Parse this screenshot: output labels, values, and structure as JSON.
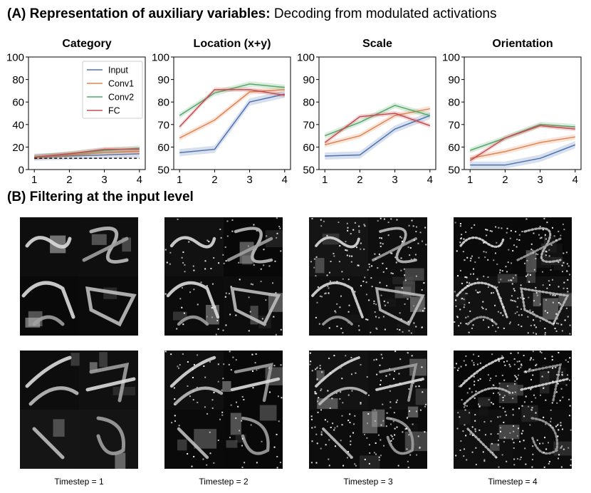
{
  "section_a": {
    "label": "(A)",
    "title_bold": "Representation of auxiliary variables:",
    "title_rest": "Decoding from modulated activations"
  },
  "section_b": {
    "label": "(B)",
    "title_bold": "Filtering at the input level"
  },
  "colors": {
    "Input": "#4c72b0",
    "Conv1": "#dd8452",
    "Conv2": "#55a868",
    "FC": "#c44e52"
  },
  "legend": [
    "Input",
    "Conv1",
    "Conv2",
    "FC"
  ],
  "timestep_labels": [
    "Timestep = 1",
    "Timestep = 2",
    "Timestep = 3",
    "Timestep = 4"
  ],
  "chart_data": [
    {
      "type": "line",
      "title": "Category",
      "x": [
        1,
        2,
        3,
        4
      ],
      "xticks": [
        "1",
        "2",
        "3",
        "4"
      ],
      "ylim": [
        0,
        100
      ],
      "yticks": [
        "0",
        "20",
        "40",
        "60",
        "80",
        "100"
      ],
      "legend_position": "top-right",
      "baseline": 10,
      "series": [
        {
          "name": "Input",
          "values": [
            11,
            12,
            13,
            14
          ]
        },
        {
          "name": "Conv1",
          "values": [
            11,
            13,
            15,
            16
          ]
        },
        {
          "name": "Conv2",
          "values": [
            11,
            14,
            17,
            19
          ]
        },
        {
          "name": "FC",
          "values": [
            11,
            14,
            18,
            18
          ]
        }
      ]
    },
    {
      "type": "line",
      "title": "Location (x+y)",
      "x": [
        1,
        2,
        3,
        4
      ],
      "xticks": [
        "1",
        "2",
        "3",
        "4"
      ],
      "ylim": [
        50,
        100
      ],
      "yticks": [
        "50",
        "60",
        "70",
        "80",
        "90",
        "100"
      ],
      "series": [
        {
          "name": "Input",
          "values": [
            57.5,
            59,
            80,
            83.5
          ]
        },
        {
          "name": "Conv1",
          "values": [
            64,
            72,
            84.5,
            85.5
          ]
        },
        {
          "name": "Conv2",
          "values": [
            74,
            84,
            88,
            86.5
          ]
        },
        {
          "name": "FC",
          "values": [
            69,
            85.5,
            85.5,
            83
          ]
        }
      ]
    },
    {
      "type": "line",
      "title": "Scale",
      "x": [
        1,
        2,
        3,
        4
      ],
      "xticks": [
        "1",
        "2",
        "3",
        "4"
      ],
      "ylim": [
        50,
        100
      ],
      "yticks": [
        "50",
        "60",
        "70",
        "80",
        "90",
        "100"
      ],
      "series": [
        {
          "name": "Input",
          "values": [
            56,
            56.5,
            68,
            74
          ]
        },
        {
          "name": "Conv1",
          "values": [
            61,
            65,
            74,
            77
          ]
        },
        {
          "name": "Conv2",
          "values": [
            65,
            71,
            78.5,
            74
          ]
        },
        {
          "name": "FC",
          "values": [
            62,
            73.5,
            75,
            69.5
          ]
        }
      ]
    },
    {
      "type": "line",
      "title": "Orientation",
      "x": [
        1,
        2,
        3,
        4
      ],
      "xticks": [
        "1",
        "2",
        "3",
        "4"
      ],
      "ylim": [
        50,
        100
      ],
      "yticks": [
        "50",
        "60",
        "70",
        "80",
        "90",
        "100"
      ],
      "series": [
        {
          "name": "Input",
          "values": [
            52,
            52,
            55,
            61
          ]
        },
        {
          "name": "Conv1",
          "values": [
            55,
            58,
            62,
            64.5
          ]
        },
        {
          "name": "Conv2",
          "values": [
            58.5,
            64,
            70,
            69
          ]
        },
        {
          "name": "FC",
          "values": [
            54,
            64,
            69.5,
            68
          ]
        }
      ]
    }
  ]
}
